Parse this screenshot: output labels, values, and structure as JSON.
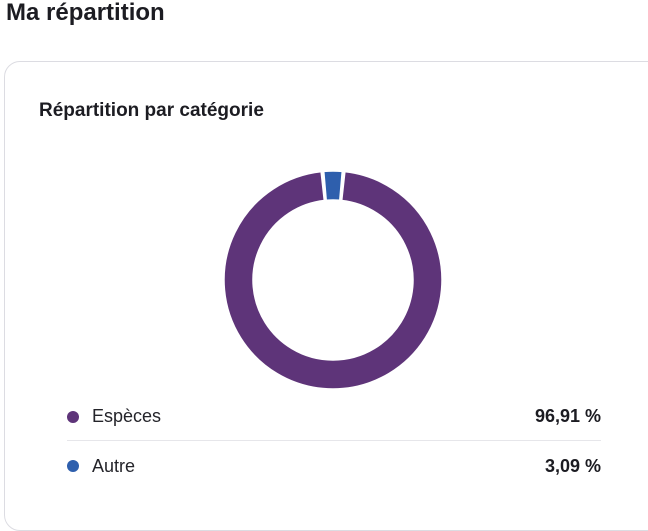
{
  "page": {
    "title": "Ma répartition"
  },
  "card": {
    "title": "Répartition par catégorie"
  },
  "chart_data": {
    "type": "pie",
    "style": "donut",
    "categories": [
      "Espèces",
      "Autre"
    ],
    "values": [
      96.91,
      3.09
    ],
    "colors": [
      "#5e3479",
      "#2e5fad"
    ],
    "legend_placement": "bottom"
  },
  "legend": {
    "items": [
      {
        "label": "Espèces",
        "value": "96,91 %",
        "color": "#5e3479"
      },
      {
        "label": "Autre",
        "value": "3,09 %",
        "color": "#2e5fad"
      }
    ]
  }
}
